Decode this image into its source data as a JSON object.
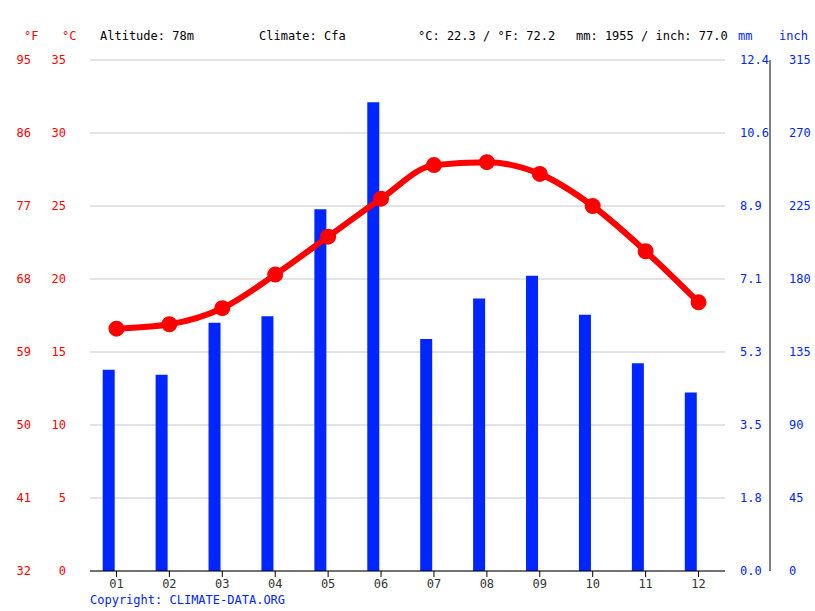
{
  "chart_data": {
    "type": "bar",
    "header": [
      "Altitude: 78m",
      "Climate: Cfa",
      "°C: 22.3 / °F: 72.2",
      "mm: 1955 / inch: 77.0"
    ],
    "annotations": [
      "Copyright: CLIMATE-DATA.ORG"
    ],
    "ylabel": "°C",
    "ylabel_f": "°F",
    "y2label": "mm",
    "y2label_inch": "inch",
    "categories": [
      "01",
      "02",
      "03",
      "04",
      "05",
      "06",
      "07",
      "08",
      "09",
      "10",
      "11",
      "12"
    ],
    "series": [
      {
        "type": "bar",
        "axis": "y2",
        "color": "#0026ff",
        "values": [
          124,
          121,
          153,
          157,
          223,
          289,
          143,
          168,
          182,
          158,
          128,
          110
        ]
      },
      {
        "type": "line",
        "color": "#ff0000",
        "marker": "circle",
        "values": [
          16.6,
          16.9,
          18.0,
          20.3,
          22.9,
          25.5,
          27.8,
          28.0,
          27.2,
          25.0,
          21.9,
          18.4
        ]
      }
    ],
    "ylim": [
      0,
      35
    ],
    "yticks": [
      0,
      5,
      10,
      15,
      20,
      25,
      30,
      35
    ],
    "yticks_f": [
      {
        "value": 0,
        "label": "32"
      },
      {
        "value": 5,
        "label": "41"
      },
      {
        "value": 10,
        "label": "50"
      },
      {
        "value": 15,
        "label": "59"
      },
      {
        "value": 20,
        "label": "68"
      },
      {
        "value": 25,
        "label": "77"
      },
      {
        "value": 30,
        "label": "86"
      },
      {
        "value": 35,
        "label": "95"
      }
    ],
    "y2lim": [
      0,
      315
    ],
    "y2ticks": [
      0,
      45,
      90,
      135,
      180,
      225,
      270,
      315
    ],
    "y2ticks_inch": [
      {
        "value": 0,
        "label": "0.0"
      },
      {
        "value": 45,
        "label": "1.8"
      },
      {
        "value": 90,
        "label": "3.5"
      },
      {
        "value": 135,
        "label": "5.3"
      },
      {
        "value": 180,
        "label": "7.1"
      },
      {
        "value": 225,
        "label": "8.9"
      },
      {
        "value": 270,
        "label": "10.6"
      },
      {
        "value": 315,
        "label": "12.4"
      }
    ],
    "grid": true
  }
}
